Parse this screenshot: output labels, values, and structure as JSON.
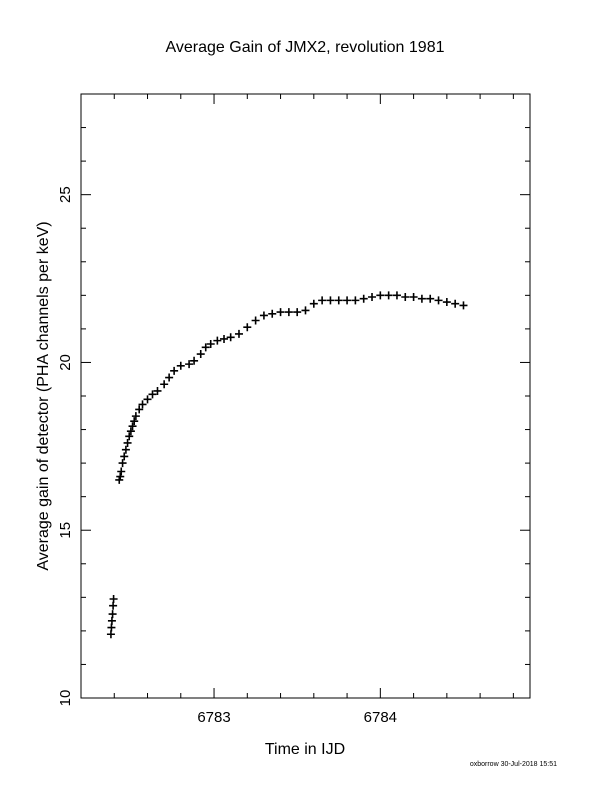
{
  "chart_data": {
    "type": "scatter",
    "title": "Average Gain of JMX2, revolution 1981",
    "xlabel": "Time in IJD",
    "ylabel": "Average gain of detector (PHA channels per keV)",
    "xlim": [
      6782.2,
      6784.9
    ],
    "ylim": [
      10,
      28
    ],
    "x_major_ticks": [
      6783,
      6784
    ],
    "x_tick_labels": [
      "6783",
      "6784"
    ],
    "x_minor_step": 0.2,
    "y_major_ticks": [
      10,
      15,
      20,
      25
    ],
    "y_tick_labels": [
      "10",
      "15",
      "20",
      "25"
    ],
    "y_minor_step": 1,
    "marker": "plus",
    "grid": false,
    "legend": "none",
    "series": [
      {
        "points": [
          [
            6782.38,
            11.9
          ],
          [
            6782.383,
            12.1
          ],
          [
            6782.386,
            12.3
          ],
          [
            6782.39,
            12.5
          ],
          [
            6782.393,
            12.75
          ],
          [
            6782.396,
            12.95
          ],
          [
            6782.43,
            16.5
          ],
          [
            6782.436,
            16.6
          ],
          [
            6782.442,
            16.75
          ],
          [
            6782.45,
            17.0
          ],
          [
            6782.46,
            17.2
          ],
          [
            6782.47,
            17.4
          ],
          [
            6782.48,
            17.6
          ],
          [
            6782.49,
            17.8
          ],
          [
            6782.5,
            17.95
          ],
          [
            6782.51,
            18.1
          ],
          [
            6782.52,
            18.25
          ],
          [
            6782.53,
            18.4
          ],
          [
            6782.55,
            18.6
          ],
          [
            6782.57,
            18.75
          ],
          [
            6782.6,
            18.9
          ],
          [
            6782.63,
            19.05
          ],
          [
            6782.66,
            19.15
          ],
          [
            6782.7,
            19.35
          ],
          [
            6782.73,
            19.55
          ],
          [
            6782.76,
            19.75
          ],
          [
            6782.8,
            19.9
          ],
          [
            6782.85,
            19.95
          ],
          [
            6782.88,
            20.05
          ],
          [
            6782.92,
            20.25
          ],
          [
            6782.95,
            20.45
          ],
          [
            6782.98,
            20.55
          ],
          [
            6783.02,
            20.65
          ],
          [
            6783.06,
            20.7
          ],
          [
            6783.1,
            20.75
          ],
          [
            6783.15,
            20.85
          ],
          [
            6783.2,
            21.05
          ],
          [
            6783.25,
            21.25
          ],
          [
            6783.3,
            21.4
          ],
          [
            6783.35,
            21.45
          ],
          [
            6783.4,
            21.5
          ],
          [
            6783.45,
            21.5
          ],
          [
            6783.5,
            21.5
          ],
          [
            6783.55,
            21.55
          ],
          [
            6783.6,
            21.75
          ],
          [
            6783.65,
            21.85
          ],
          [
            6783.7,
            21.85
          ],
          [
            6783.75,
            21.85
          ],
          [
            6783.8,
            21.85
          ],
          [
            6783.85,
            21.85
          ],
          [
            6783.9,
            21.9
          ],
          [
            6783.95,
            21.95
          ],
          [
            6784.0,
            22.0
          ],
          [
            6784.05,
            22.0
          ],
          [
            6784.1,
            22.0
          ],
          [
            6784.15,
            21.95
          ],
          [
            6784.2,
            21.95
          ],
          [
            6784.25,
            21.9
          ],
          [
            6784.3,
            21.9
          ],
          [
            6784.35,
            21.85
          ],
          [
            6784.4,
            21.8
          ],
          [
            6784.45,
            21.75
          ],
          [
            6784.5,
            21.7
          ]
        ]
      }
    ]
  },
  "footer": {
    "stamp": "oxborrow 30-Jul-2018 15:51"
  }
}
